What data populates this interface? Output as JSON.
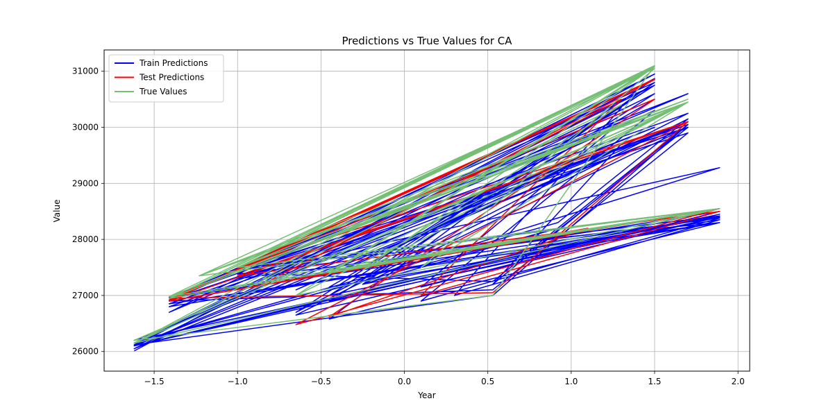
{
  "chart_data": {
    "type": "line",
    "title": "Predictions vs True Values for CA",
    "xlabel": "Year",
    "ylabel": "Value",
    "xlim": [
      -1.8,
      2.07
    ],
    "ylim": [
      25650,
      31380
    ],
    "xticks": [
      -1.5,
      -1.0,
      -0.5,
      0.0,
      0.5,
      1.0,
      1.5,
      2.0
    ],
    "xtick_labels": [
      "−1.5",
      "−1.0",
      "−0.5",
      "0.0",
      "0.5",
      "1.0",
      "1.5",
      "2.0"
    ],
    "yticks": [
      26000,
      27000,
      28000,
      29000,
      30000,
      31000
    ],
    "ytick_labels": [
      "26000",
      "27000",
      "28000",
      "29000",
      "30000",
      "31000"
    ],
    "grid": true,
    "legend_position": "top-left",
    "series": [
      {
        "name": "Train Predictions",
        "color": "#0000ff",
        "x": [
          -1.62,
          1.5,
          -1.41,
          1.7,
          -1.0,
          1.89,
          -0.45,
          1.3,
          -1.62,
          0.53,
          1.7,
          -1.41,
          1.5,
          -1.0,
          1.89,
          -0.25,
          0.92,
          -1.62,
          1.5,
          -0.65,
          1.7,
          -1.41,
          1.89,
          0.1,
          1.3,
          -1.0,
          0.53,
          1.7,
          -1.62,
          1.5,
          -0.45,
          1.89,
          -1.41,
          0.92,
          -0.65,
          1.7,
          -1.0,
          1.89,
          -0.25,
          1.5,
          -1.62,
          0.75,
          1.7,
          -1.41,
          1.89,
          0.3,
          1.3,
          -1.0,
          1.5,
          -0.85,
          1.7,
          -1.62,
          1.89,
          -0.45,
          1.5,
          -1.41,
          0.53,
          1.7,
          -1.0,
          1.89,
          0.1,
          1.5,
          -1.62,
          0.92,
          1.7,
          -0.65,
          1.89,
          -1.41,
          1.5,
          -0.25,
          1.7,
          -1.0,
          1.89,
          -1.62,
          1.3,
          0.53,
          1.7,
          -1.41,
          1.89,
          -0.45,
          1.5,
          -1.0,
          1.7,
          -1.62,
          1.89
        ],
        "y": [
          26010,
          30950,
          26700,
          30600,
          27500,
          28300,
          26580,
          30480,
          26120,
          27000,
          30050,
          26920,
          30860,
          27380,
          28420,
          27200,
          28200,
          26150,
          30750,
          26700,
          30250,
          26960,
          28500,
          27150,
          30100,
          27400,
          27250,
          30000,
          26050,
          30600,
          26900,
          28400,
          26800,
          29200,
          27100,
          30100,
          27350,
          29280,
          27300,
          30870,
          26100,
          27800,
          30050,
          26850,
          28350,
          27000,
          30350,
          27100,
          30000,
          27200,
          30100,
          26200,
          28450,
          27000,
          30750,
          26900,
          27100,
          29900,
          27300,
          28380,
          26900,
          30300,
          26150,
          28300,
          30150,
          26650,
          28400,
          26950,
          30800,
          27200,
          30000,
          27450,
          28550,
          26100,
          29700,
          27200,
          30050,
          26850,
          28300,
          27150,
          30500,
          27400,
          30000,
          26100,
          28450
        ]
      },
      {
        "name": "Test Predictions",
        "color": "#ff0000",
        "x": [
          -1.41,
          1.5,
          -1.0,
          1.7,
          -0.65,
          1.89,
          -1.41,
          1.1,
          -0.45,
          1.5,
          -1.41,
          0.53,
          1.7,
          -1.0,
          1.89,
          0.1,
          1.3,
          -0.85,
          1.5,
          -1.41,
          1.7
        ],
        "y": [
          26920,
          30860,
          27500,
          30100,
          26480,
          28550,
          26900,
          28200,
          26620,
          30500,
          26950,
          27050,
          30100,
          27350,
          28500,
          27000,
          30500,
          27200,
          30850,
          26900,
          30100
        ]
      },
      {
        "name": "True Values",
        "color": "#75bf75",
        "x": [
          -1.62,
          1.5,
          -1.41,
          1.7,
          -1.23,
          1.89,
          -1.0,
          1.5,
          -0.65,
          1.7,
          -1.62,
          0.53,
          1.5,
          -1.41,
          1.89,
          -0.45,
          1.7,
          -1.23,
          1.5,
          -1.0,
          1.89,
          -0.25,
          1.3,
          -1.62,
          1.7,
          -1.41,
          1.5,
          -0.85,
          1.89,
          -1.23,
          0.92,
          -1.0,
          1.7,
          -1.62,
          1.5,
          -0.45,
          1.89,
          -1.41,
          1.7,
          0.1,
          1.5,
          -1.23,
          1.89,
          -1.0,
          1.7,
          -1.62,
          1.5,
          -0.65,
          1.89,
          -1.41,
          1.5,
          -0.25,
          1.7,
          -1.0,
          1.89,
          -1.62,
          1.5
        ],
        "y": [
          26150,
          31100,
          26980,
          30500,
          27350,
          28550,
          27500,
          31080,
          27000,
          30450,
          26200,
          27000,
          31100,
          26950,
          28550,
          27450,
          30450,
          27350,
          31050,
          27500,
          28550,
          27500,
          30400,
          26150,
          30450,
          26950,
          31080,
          27300,
          28550,
          27350,
          29800,
          27500,
          30450,
          26150,
          31100,
          27400,
          28550,
          26980,
          30450,
          27500,
          31050,
          27350,
          28550,
          27500,
          30450,
          26150,
          31100,
          27000,
          28550,
          26950,
          31080,
          27450,
          30450,
          27500,
          28550,
          26150,
          31100
        ]
      }
    ]
  }
}
